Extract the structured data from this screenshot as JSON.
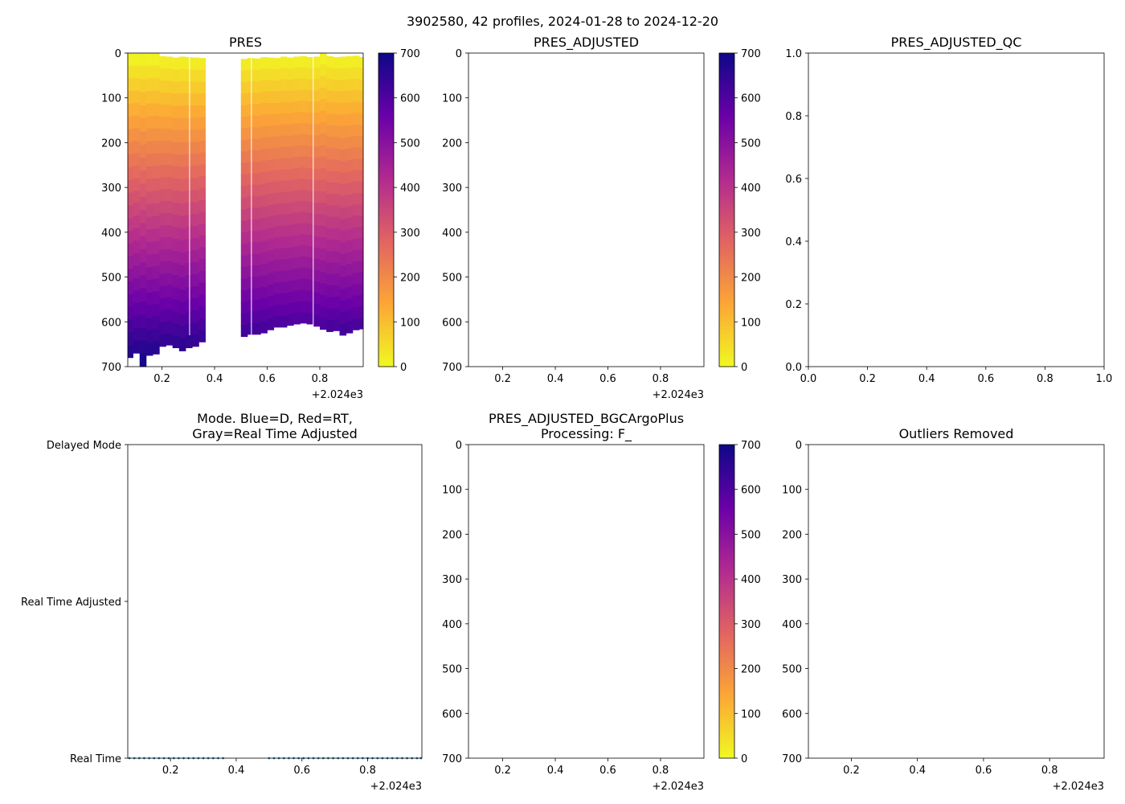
{
  "figure": {
    "suptitle": "3902580, 42 profiles, 2024-01-28 to 2024-12-20",
    "cmap_colors": [
      "#f0f921",
      "#fca636",
      "#e16462",
      "#b12a90",
      "#6a00a8",
      "#0d0887"
    ]
  },
  "chart_data": [
    {
      "id": "pres",
      "type": "heatmap",
      "title": "PRES",
      "x_offset_label": "+2.024e3",
      "xlim": [
        0.07,
        0.965
      ],
      "ylim": [
        700,
        0
      ],
      "xticks": [
        0.2,
        0.4,
        0.6,
        0.8
      ],
      "xtick_labels": [
        "0.2",
        "0.4",
        "0.6",
        "0.8"
      ],
      "yticks": [
        0,
        100,
        200,
        300,
        400,
        500,
        600,
        700
      ],
      "ytick_labels": [
        "0",
        "100",
        "200",
        "300",
        "400",
        "500",
        "600",
        "700"
      ],
      "colorbar": {
        "range": [
          0,
          700
        ],
        "ticks": [
          0,
          100,
          200,
          300,
          400,
          500,
          600,
          700
        ],
        "tick_labels": [
          "0",
          "100",
          "200",
          "300",
          "400",
          "500",
          "600",
          "700"
        ]
      },
      "profiles_x": [
        0.07,
        0.09,
        0.115,
        0.14,
        0.165,
        0.19,
        0.215,
        0.24,
        0.265,
        0.29,
        0.315,
        0.34,
        0.365,
        0.5,
        0.525,
        0.55,
        0.575,
        0.6,
        0.625,
        0.65,
        0.675,
        0.7,
        0.725,
        0.75,
        0.775,
        0.8,
        0.825,
        0.85,
        0.875,
        0.9,
        0.925,
        0.95,
        0.965
      ],
      "profiles_top": [
        0,
        0,
        0,
        0,
        0,
        7,
        8,
        10,
        8,
        9,
        10,
        11,
        0,
        13,
        11,
        12,
        9,
        10,
        11,
        8,
        10,
        8,
        7,
        9,
        8,
        0,
        7,
        9,
        8,
        7,
        6,
        9,
        9
      ],
      "profiles_bottom": [
        680,
        670,
        700,
        675,
        672,
        655,
        652,
        658,
        665,
        658,
        655,
        645,
        640,
        633,
        628,
        628,
        625,
        618,
        612,
        612,
        608,
        605,
        603,
        605,
        610,
        617,
        622,
        620,
        630,
        625,
        618,
        616,
        616
      ],
      "gap_range": [
        0.365,
        0.5
      ],
      "white_lines_x": [
        0.305,
        0.54,
        0.775
      ]
    },
    {
      "id": "pres_adjusted",
      "type": "heatmap",
      "title": "PRES_ADJUSTED",
      "x_offset_label": "+2.024e3",
      "xlim": [
        0.07,
        0.965
      ],
      "ylim": [
        700,
        0
      ],
      "xticks": [
        0.2,
        0.4,
        0.6,
        0.8
      ],
      "xtick_labels": [
        "0.2",
        "0.4",
        "0.6",
        "0.8"
      ],
      "yticks": [
        0,
        100,
        200,
        300,
        400,
        500,
        600,
        700
      ],
      "ytick_labels": [
        "0",
        "100",
        "200",
        "300",
        "400",
        "500",
        "600",
        "700"
      ],
      "colorbar": {
        "range": [
          0,
          700
        ],
        "ticks": [
          0,
          100,
          200,
          300,
          400,
          500,
          600,
          700
        ],
        "tick_labels": [
          "0",
          "100",
          "200",
          "300",
          "400",
          "500",
          "600",
          "700"
        ]
      }
    },
    {
      "id": "pres_adjusted_qc",
      "type": "scatter",
      "title": "PRES_ADJUSTED_QC",
      "xlim": [
        0,
        1
      ],
      "ylim": [
        0,
        1
      ],
      "xticks": [
        0,
        0.2,
        0.4,
        0.6,
        0.8,
        1.0
      ],
      "xtick_labels": [
        "0.0",
        "0.2",
        "0.4",
        "0.6",
        "0.8",
        "1.0"
      ],
      "yticks": [
        0,
        0.2,
        0.4,
        0.6,
        0.8,
        1.0
      ],
      "ytick_labels": [
        "0.0",
        "0.2",
        "0.4",
        "0.6",
        "0.8",
        "1.0"
      ]
    },
    {
      "id": "mode",
      "type": "scatter",
      "title_lines": [
        "Mode. Blue=D, Red=RT,",
        "Gray=Real Time Adjusted"
      ],
      "x_offset_label": "+2.024e3",
      "xlim": [
        0.07,
        0.965
      ],
      "ylim": [
        0,
        2
      ],
      "xticks": [
        0.2,
        0.4,
        0.6,
        0.8
      ],
      "xtick_labels": [
        "0.2",
        "0.4",
        "0.6",
        "0.8"
      ],
      "yticks": [
        2,
        1,
        0
      ],
      "ytick_labels": [
        "Delayed Mode",
        "Real Time Adjusted",
        "Real Time"
      ],
      "point_color": "#1f77b4",
      "points_x": [
        0.075,
        0.09,
        0.105,
        0.12,
        0.135,
        0.15,
        0.165,
        0.18,
        0.195,
        0.21,
        0.225,
        0.24,
        0.255,
        0.27,
        0.285,
        0.3,
        0.315,
        0.33,
        0.345,
        0.36,
        0.5,
        0.515,
        0.53,
        0.545,
        0.56,
        0.575,
        0.59,
        0.605,
        0.62,
        0.635,
        0.65,
        0.665,
        0.68,
        0.695,
        0.71,
        0.725,
        0.74,
        0.755,
        0.77,
        0.785,
        0.8,
        0.815,
        0.83,
        0.845,
        0.86,
        0.875,
        0.89,
        0.905,
        0.92,
        0.935,
        0.95,
        0.962
      ],
      "points_y": 0
    },
    {
      "id": "pres_adjusted_bgc",
      "type": "heatmap",
      "title_lines": [
        "PRES_ADJUSTED_BGCArgoPlus",
        "Processing: F_"
      ],
      "x_offset_label": "+2.024e3",
      "xlim": [
        0.07,
        0.965
      ],
      "ylim": [
        700,
        0
      ],
      "xticks": [
        0.2,
        0.4,
        0.6,
        0.8
      ],
      "xtick_labels": [
        "0.2",
        "0.4",
        "0.6",
        "0.8"
      ],
      "yticks": [
        0,
        100,
        200,
        300,
        400,
        500,
        600,
        700
      ],
      "ytick_labels": [
        "0",
        "100",
        "200",
        "300",
        "400",
        "500",
        "600",
        "700"
      ],
      "colorbar": {
        "range": [
          0,
          700
        ],
        "ticks": [
          0,
          100,
          200,
          300,
          400,
          500,
          600,
          700
        ],
        "tick_labels": [
          "0",
          "100",
          "200",
          "300",
          "400",
          "500",
          "600",
          "700"
        ]
      }
    },
    {
      "id": "outliers",
      "type": "scatter",
      "title": "Outliers Removed",
      "x_offset_label": "+2.024e3",
      "xlim": [
        0.07,
        0.965
      ],
      "ylim": [
        700,
        0
      ],
      "xticks": [
        0.2,
        0.4,
        0.6,
        0.8
      ],
      "xtick_labels": [
        "0.2",
        "0.4",
        "0.6",
        "0.8"
      ],
      "yticks": [
        0,
        100,
        200,
        300,
        400,
        500,
        600,
        700
      ],
      "ytick_labels": [
        "0",
        "100",
        "200",
        "300",
        "400",
        "500",
        "600",
        "700"
      ]
    }
  ]
}
